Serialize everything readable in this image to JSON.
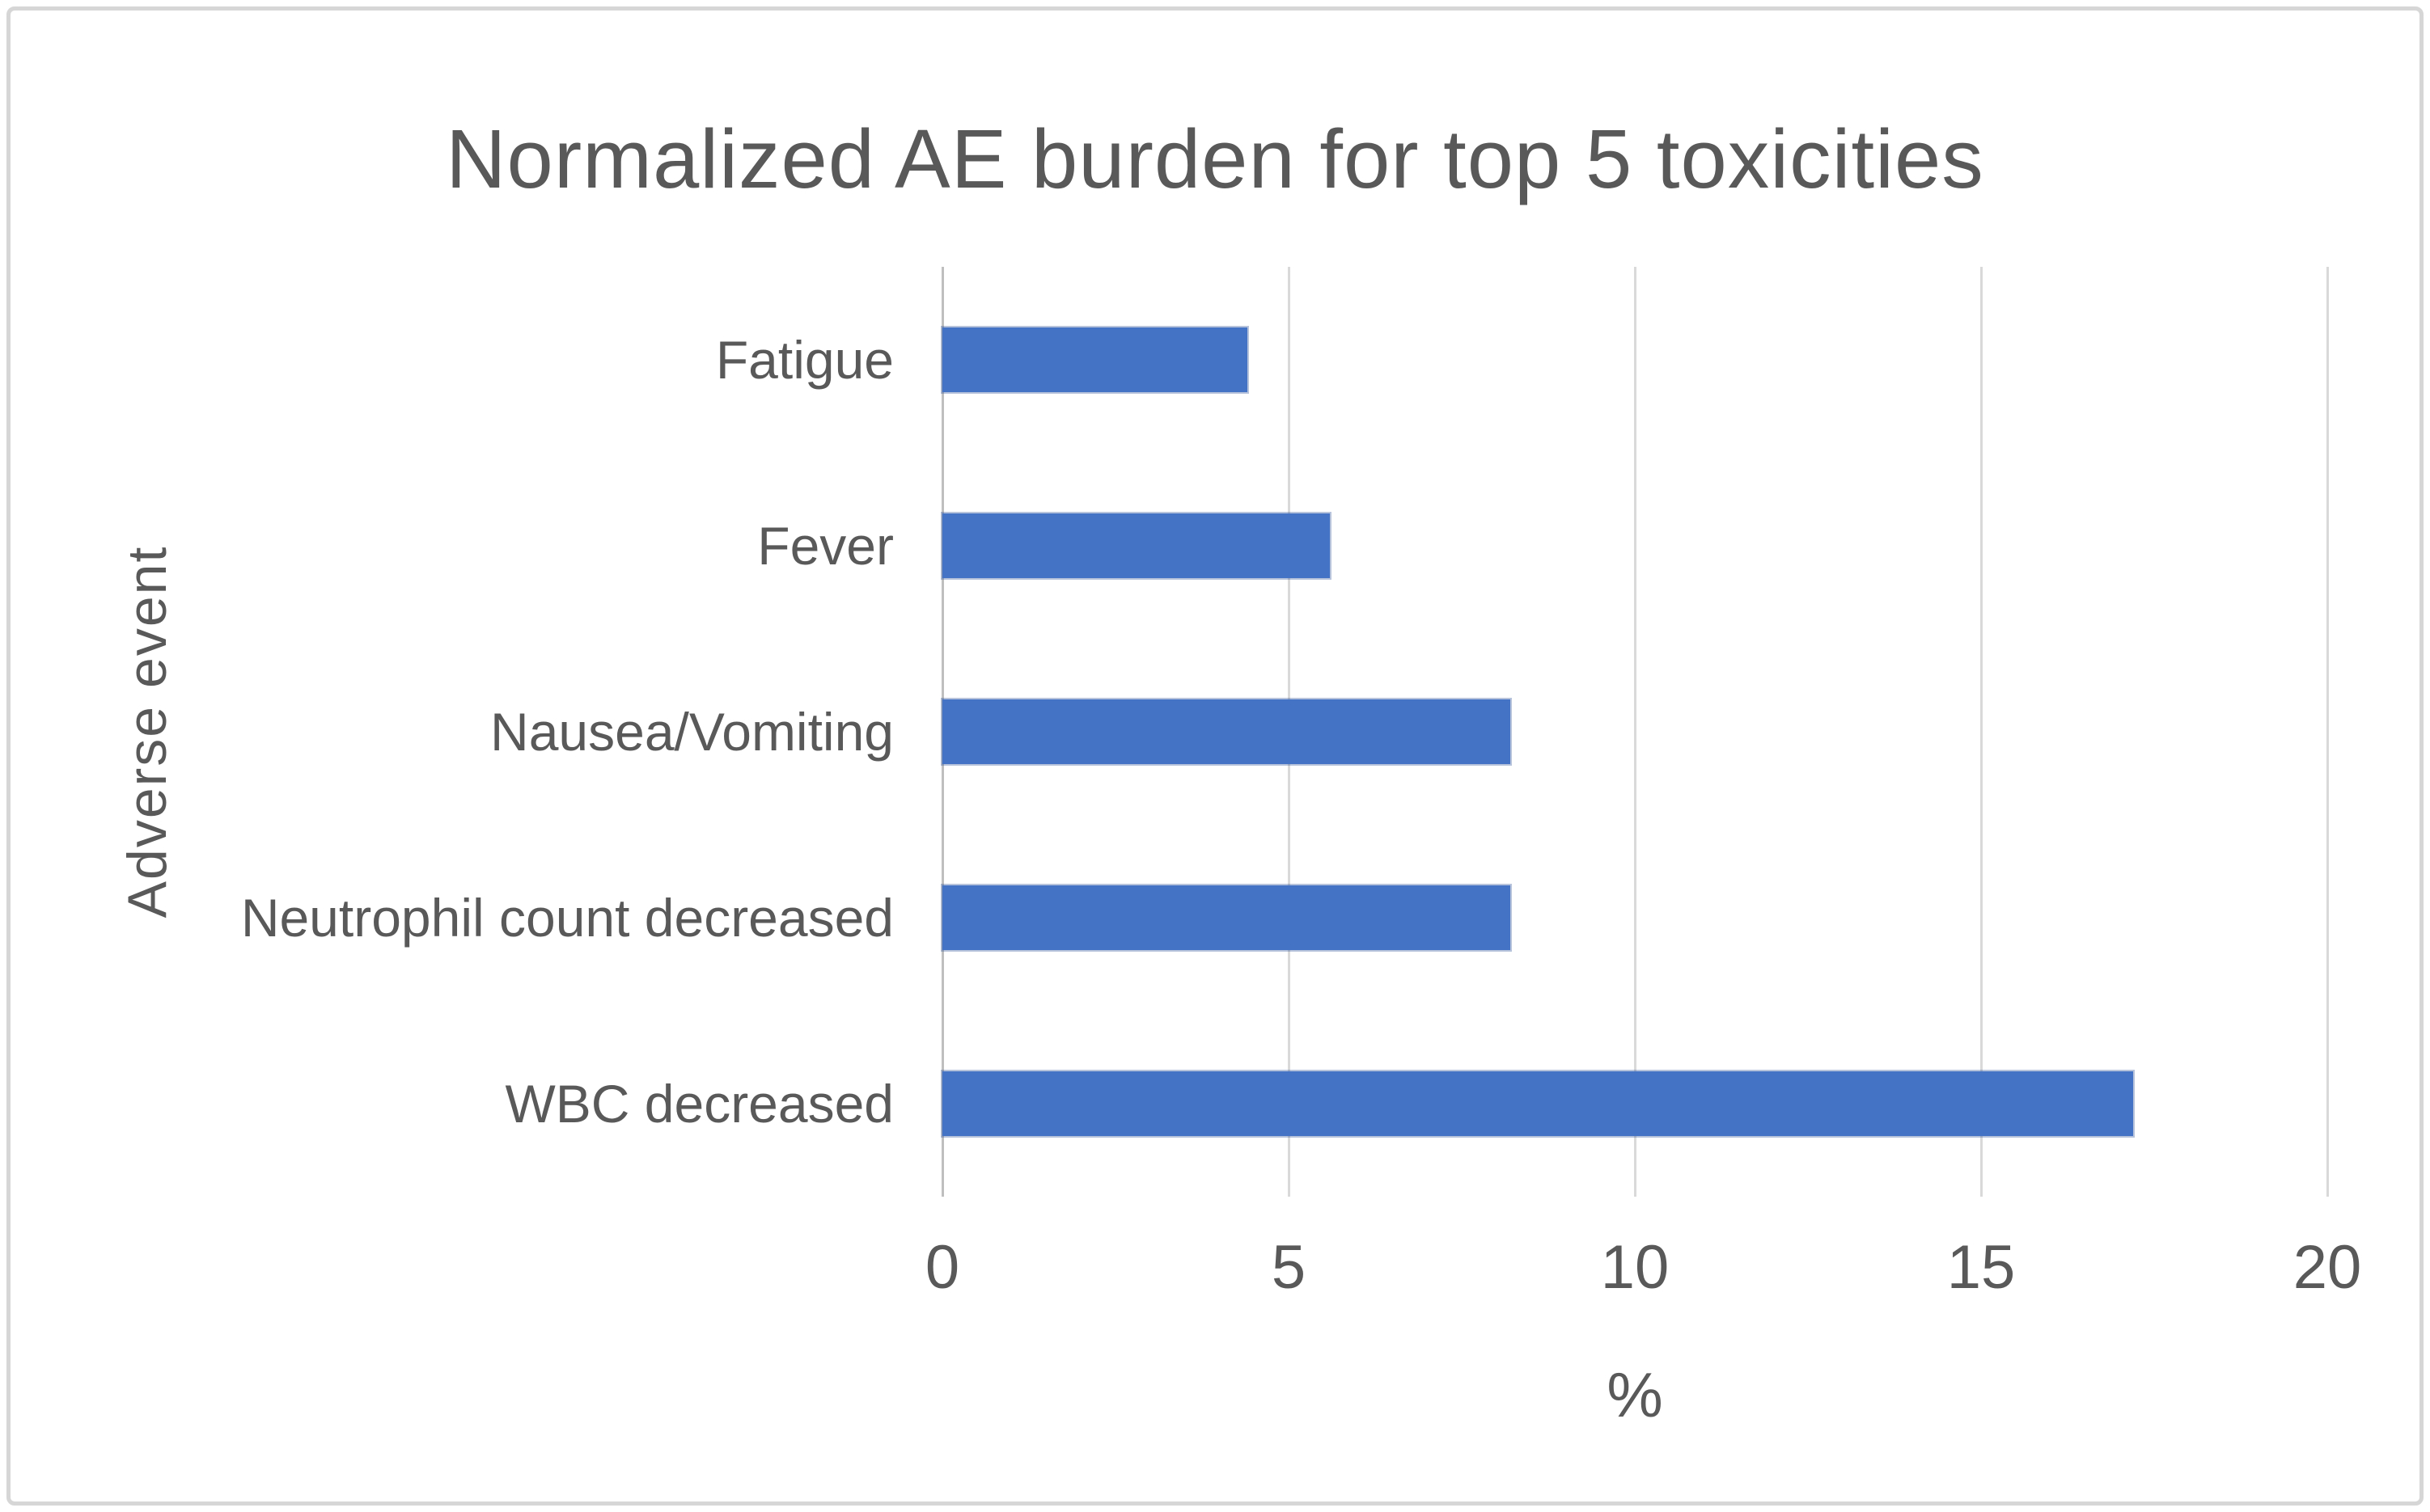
{
  "window": {
    "background": "#ffffff",
    "frame_border_color": "#d6d6d6"
  },
  "chart_data": {
    "type": "bar",
    "orientation": "horizontal",
    "title": "Normalized AE burden for top 5 toxicities",
    "categories": [
      "Fatigue",
      "Fever",
      "Nausea/Vomiting",
      "Neutrophil count decreased",
      "WBC decreased"
    ],
    "values": [
      4.4,
      5.6,
      8.2,
      8.2,
      17.2
    ],
    "xlabel": "%",
    "ylabel": "Adverse event",
    "xlim": [
      0,
      20
    ],
    "xticks": [
      0,
      5,
      10,
      15,
      20
    ],
    "grid": true,
    "legend": false,
    "bar_color": "#4472c4",
    "gridline_color": "#d9d9d9",
    "axis_line_color": "#bfbfbf",
    "text_color": "#595959"
  }
}
